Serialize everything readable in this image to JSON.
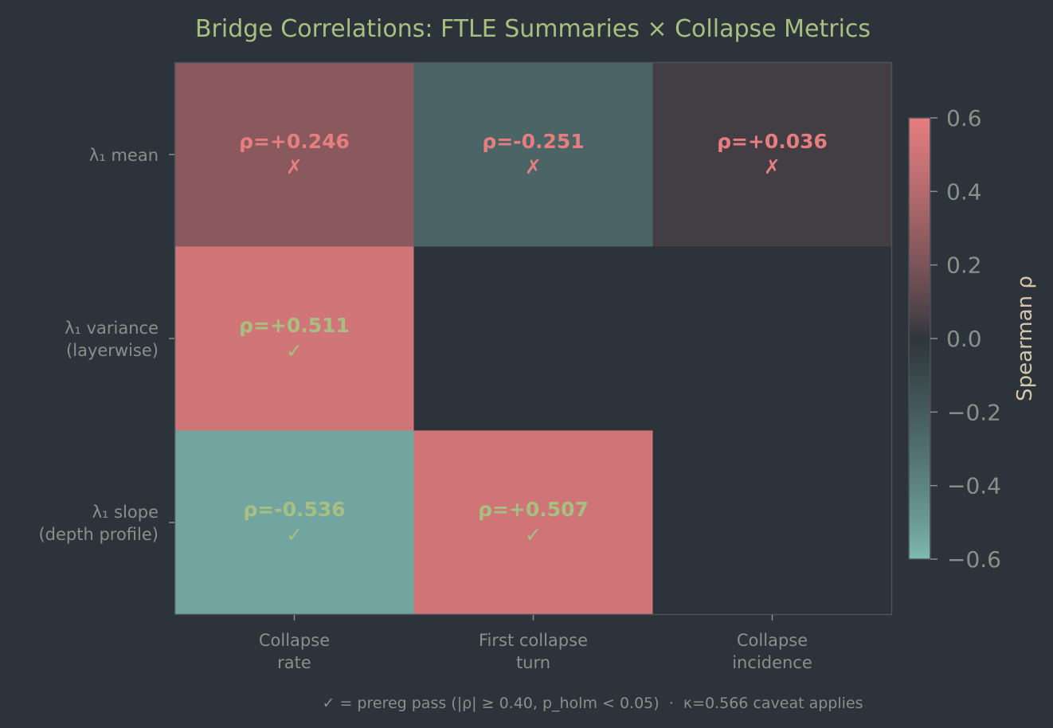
{
  "chart_data": {
    "type": "heatmap",
    "title": "Bridge Correlations: FTLE Summaries × Collapse Metrics",
    "rows": [
      "λ₁ mean",
      "λ₁ variance\n(layerwise)",
      "λ₁ slope\n(depth profile)"
    ],
    "columns": [
      "Collapse\nrate",
      "First collapse\nturn",
      "Collapse\nincidence"
    ],
    "values": [
      [
        0.246,
        -0.251,
        0.036
      ],
      [
        0.511,
        null,
        null
      ],
      [
        -0.536,
        0.507,
        null
      ]
    ],
    "labels": [
      [
        "ρ=+0.246",
        "ρ=-0.251",
        "ρ=+0.036"
      ],
      [
        "ρ=+0.511",
        null,
        null
      ],
      [
        "ρ=-0.536",
        "ρ=+0.507",
        null
      ]
    ],
    "pass": [
      [
        false,
        false,
        false
      ],
      [
        true,
        null,
        null
      ],
      [
        true,
        true,
        null
      ]
    ],
    "pass_mark": "✓",
    "fail_mark": "✗",
    "colorbar": {
      "label": "Spearman ρ",
      "vmin": -0.6,
      "vmax": 0.6,
      "ticks": [
        0.6,
        0.4,
        0.2,
        0.0,
        -0.2,
        -0.4,
        -0.6
      ],
      "tick_labels": [
        "0.6",
        "0.4",
        "0.2",
        "0.0",
        "−0.2",
        "−0.4",
        "−0.6"
      ]
    },
    "footnote": "✓ = prereg pass (|ρ| ≥ 0.40, p_holm < 0.05)  ·  κ=0.566 caveat applies"
  },
  "colors": {
    "background": "#2d333a",
    "positive": "#e67e80",
    "negative": "#7fbbb3",
    "neutral": "#2f363c",
    "pass_text": "#a7c080",
    "fail_text": "#e67e80",
    "title": "#a7c080",
    "tick_text": "#859289",
    "cbar_label": "#d3c6aa"
  }
}
